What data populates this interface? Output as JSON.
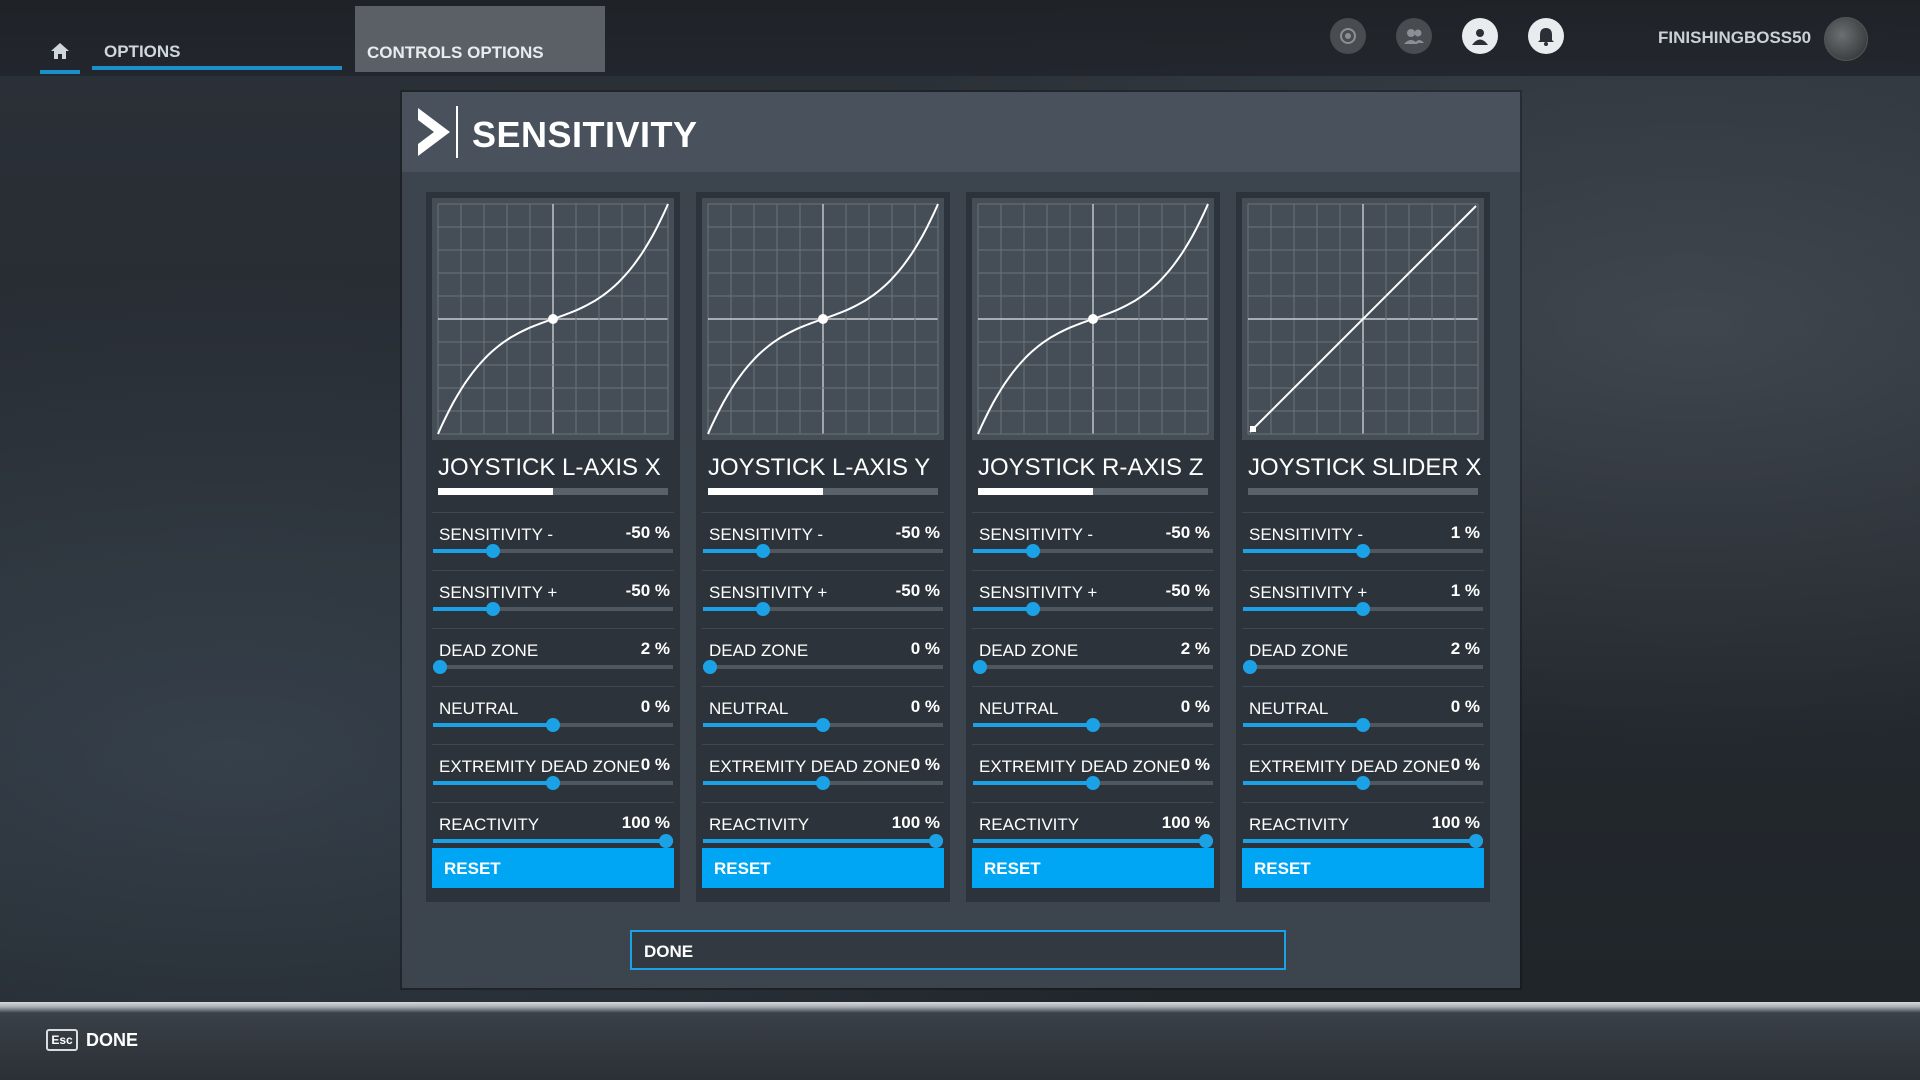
{
  "topbar": {
    "tab_options": "OPTIONS",
    "tab_controls": "CONTROLS OPTIONS",
    "username": "FINISHINGBOSS50",
    "icons": [
      "home-icon",
      "marketplace-icon",
      "friends-icon",
      "profile-icon",
      "notifications-icon"
    ]
  },
  "dialog": {
    "title": "SENSITIVITY",
    "done_label": "DONE",
    "reset_label": "RESET"
  },
  "axes": [
    {
      "name": "JOYSTICK L-AXIS X",
      "axis_level": 0.5,
      "curve": "s-curve",
      "settings": [
        {
          "label": "SENSITIVITY -",
          "value": "-50 %",
          "level": 0.25
        },
        {
          "label": "SENSITIVITY +",
          "value": "-50 %",
          "level": 0.25
        },
        {
          "label": "DEAD ZONE",
          "value": "2 %",
          "level": 0.02
        },
        {
          "label": "NEUTRAL",
          "value": "0 %",
          "level": 0.5
        },
        {
          "label": "EXTREMITY DEAD ZONE",
          "value": "0 %",
          "level": 0.5
        },
        {
          "label": "REACTIVITY",
          "value": "100 %",
          "level": 1.0
        }
      ]
    },
    {
      "name": "JOYSTICK L-AXIS Y",
      "axis_level": 0.5,
      "curve": "s-curve",
      "settings": [
        {
          "label": "SENSITIVITY -",
          "value": "-50 %",
          "level": 0.25
        },
        {
          "label": "SENSITIVITY +",
          "value": "-50 %",
          "level": 0.25
        },
        {
          "label": "DEAD ZONE",
          "value": "0 %",
          "level": 0.0
        },
        {
          "label": "NEUTRAL",
          "value": "0 %",
          "level": 0.5
        },
        {
          "label": "EXTREMITY DEAD ZONE",
          "value": "0 %",
          "level": 0.5
        },
        {
          "label": "REACTIVITY",
          "value": "100 %",
          "level": 1.0
        }
      ]
    },
    {
      "name": "JOYSTICK R-AXIS Z",
      "axis_level": 0.5,
      "curve": "s-curve",
      "settings": [
        {
          "label": "SENSITIVITY -",
          "value": "-50 %",
          "level": 0.25
        },
        {
          "label": "SENSITIVITY +",
          "value": "-50 %",
          "level": 0.25
        },
        {
          "label": "DEAD ZONE",
          "value": "2 %",
          "level": 0.02
        },
        {
          "label": "NEUTRAL",
          "value": "0 %",
          "level": 0.5
        },
        {
          "label": "EXTREMITY DEAD ZONE",
          "value": "0 %",
          "level": 0.5
        },
        {
          "label": "REACTIVITY",
          "value": "100 %",
          "level": 1.0
        }
      ]
    },
    {
      "name": "JOYSTICK SLIDER X",
      "axis_level": 0.0,
      "curve": "linear",
      "settings": [
        {
          "label": "SENSITIVITY -",
          "value": "1 %",
          "level": 0.5
        },
        {
          "label": "SENSITIVITY +",
          "value": "1 %",
          "level": 0.5
        },
        {
          "label": "DEAD ZONE",
          "value": "2 %",
          "level": 0.02
        },
        {
          "label": "NEUTRAL",
          "value": "0 %",
          "level": 0.5
        },
        {
          "label": "EXTREMITY DEAD ZONE",
          "value": "0 %",
          "level": 0.5
        },
        {
          "label": "REACTIVITY",
          "value": "100 %",
          "level": 1.0
        }
      ]
    }
  ],
  "bottombar": {
    "key": "Esc",
    "action": "DONE"
  },
  "colors": {
    "accent": "#00a6f4",
    "slider": "#1ba2e6",
    "dialog_bg": "#3c444d",
    "card_bg": "#2c333a"
  }
}
